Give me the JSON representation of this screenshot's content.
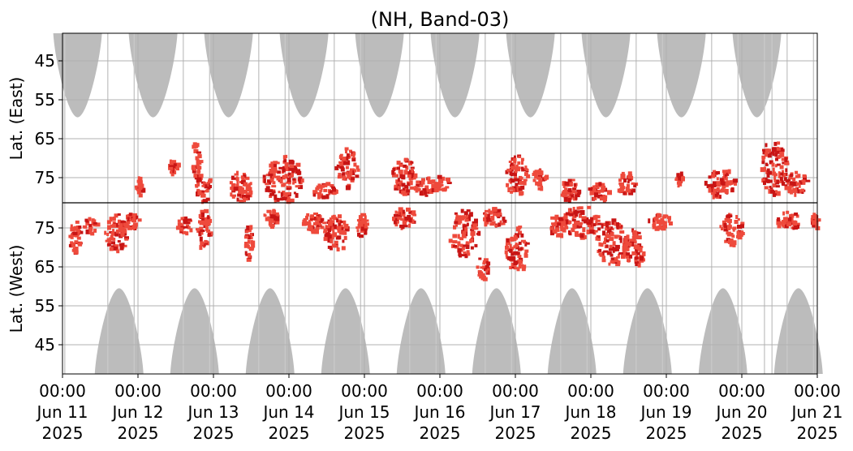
{
  "chart_data": {
    "type": "heatmap",
    "title": "(NH, Band-03)",
    "ylabel_east": "Lat. (East)",
    "ylabel_west": "Lat. (West)",
    "y_tick_labels_east": [
      "45",
      "55",
      "65",
      "75"
    ],
    "y_tick_labels_west": [
      "75",
      "65",
      "55",
      "45"
    ],
    "x_tick_labels": [
      [
        "00:00",
        "Jun 11",
        "2025"
      ],
      [
        "00:00",
        "Jun 12",
        "2025"
      ],
      [
        "00:00",
        "Jun 13",
        "2025"
      ],
      [
        "00:00",
        "Jun 14",
        "2025"
      ],
      [
        "00:00",
        "Jun 15",
        "2025"
      ],
      [
        "00:00",
        "Jun 16",
        "2025"
      ],
      [
        "00:00",
        "Jun 17",
        "2025"
      ],
      [
        "00:00",
        "Jun 18",
        "2025"
      ],
      [
        "00:00",
        "Jun 19",
        "2025"
      ],
      [
        "00:00",
        "Jun 20",
        "2025"
      ],
      [
        "00:00",
        "Jun 21",
        "2025"
      ]
    ],
    "grid": true,
    "colors": {
      "daylight_gray": "#bcbcbc",
      "activity_light": "#ee4a3c",
      "activity_dark": "#c81515",
      "grid": "#b0b0b0",
      "divider": "#000000"
    },
    "daylight_lobes": {
      "top_centers_day": [
        0.2,
        1.2,
        2.2,
        3.2,
        4.2,
        5.2,
        6.2,
        7.2,
        8.2,
        9.2
      ],
      "bottom_centers_day": [
        0.75,
        1.75,
        2.75,
        3.75,
        4.75,
        5.75,
        6.75,
        7.75,
        8.75,
        9.75
      ],
      "top_lobe_extent_lat": 59.5,
      "bottom_lobe_extent_lat": 59.5
    },
    "activity_regions": [
      {
        "day": 0.15,
        "lat": 73,
        "hemisphere": "west",
        "w": 0.18,
        "h": 8,
        "intensity": 0.6
      },
      {
        "day": 0.35,
        "lat": 76,
        "hemisphere": "west",
        "w": 0.2,
        "h": 4,
        "intensity": 0.5
      },
      {
        "day": 0.7,
        "lat": 74,
        "hemisphere": "west",
        "w": 0.3,
        "h": 10,
        "intensity": 0.8
      },
      {
        "day": 0.9,
        "lat": 77,
        "hemisphere": "west",
        "w": 0.2,
        "h": 4,
        "intensity": 0.5
      },
      {
        "day": 1.0,
        "lat": 77,
        "hemisphere": "east",
        "w": 0.1,
        "h": 5,
        "intensity": 0.4
      },
      {
        "day": 1.45,
        "lat": 72,
        "hemisphere": "east",
        "w": 0.12,
        "h": 4,
        "intensity": 0.4
      },
      {
        "day": 1.6,
        "lat": 76,
        "hemisphere": "west",
        "w": 0.2,
        "h": 4,
        "intensity": 0.5
      },
      {
        "day": 1.75,
        "lat": 70,
        "hemisphere": "east",
        "w": 0.12,
        "h": 10,
        "intensity": 0.9
      },
      {
        "day": 1.85,
        "lat": 77,
        "hemisphere": "east",
        "w": 0.2,
        "h": 8,
        "intensity": 0.8
      },
      {
        "day": 1.85,
        "lat": 75,
        "hemisphere": "west",
        "w": 0.18,
        "h": 10,
        "intensity": 0.7
      },
      {
        "day": 2.35,
        "lat": 77,
        "hemisphere": "east",
        "w": 0.3,
        "h": 8,
        "intensity": 0.6
      },
      {
        "day": 2.45,
        "lat": 72,
        "hemisphere": "west",
        "w": 0.1,
        "h": 10,
        "intensity": 0.6
      },
      {
        "day": 2.75,
        "lat": 78,
        "hemisphere": "west",
        "w": 0.2,
        "h": 4,
        "intensity": 0.5
      },
      {
        "day": 2.9,
        "lat": 75,
        "hemisphere": "east",
        "w": 0.5,
        "h": 12,
        "intensity": 1.0
      },
      {
        "day": 3.3,
        "lat": 77,
        "hemisphere": "west",
        "w": 0.3,
        "h": 5,
        "intensity": 0.6
      },
      {
        "day": 3.45,
        "lat": 78,
        "hemisphere": "east",
        "w": 0.3,
        "h": 4,
        "intensity": 0.5
      },
      {
        "day": 3.6,
        "lat": 74,
        "hemisphere": "west",
        "w": 0.3,
        "h": 10,
        "intensity": 0.9
      },
      {
        "day": 3.75,
        "lat": 72,
        "hemisphere": "east",
        "w": 0.3,
        "h": 10,
        "intensity": 0.8
      },
      {
        "day": 3.95,
        "lat": 76,
        "hemisphere": "west",
        "w": 0.15,
        "h": 6,
        "intensity": 0.5
      },
      {
        "day": 4.5,
        "lat": 74,
        "hemisphere": "east",
        "w": 0.3,
        "h": 10,
        "intensity": 0.7
      },
      {
        "day": 4.5,
        "lat": 78,
        "hemisphere": "west",
        "w": 0.3,
        "h": 5,
        "intensity": 0.7
      },
      {
        "day": 4.8,
        "lat": 77,
        "hemisphere": "east",
        "w": 0.3,
        "h": 5,
        "intensity": 0.6
      },
      {
        "day": 5.0,
        "lat": 76,
        "hemisphere": "east",
        "w": 0.2,
        "h": 4,
        "intensity": 0.5
      },
      {
        "day": 5.3,
        "lat": 74,
        "hemisphere": "west",
        "w": 0.4,
        "h": 12,
        "intensity": 1.0
      },
      {
        "day": 5.55,
        "lat": 65,
        "hemisphere": "west",
        "w": 0.15,
        "h": 6,
        "intensity": 0.5
      },
      {
        "day": 5.7,
        "lat": 78,
        "hemisphere": "west",
        "w": 0.3,
        "h": 5,
        "intensity": 0.6
      },
      {
        "day": 6.0,
        "lat": 74,
        "hemisphere": "east",
        "w": 0.3,
        "h": 10,
        "intensity": 0.6
      },
      {
        "day": 6.0,
        "lat": 70,
        "hemisphere": "west",
        "w": 0.3,
        "h": 12,
        "intensity": 0.8
      },
      {
        "day": 6.3,
        "lat": 75,
        "hemisphere": "east",
        "w": 0.2,
        "h": 5,
        "intensity": 0.5
      },
      {
        "day": 6.55,
        "lat": 76,
        "hemisphere": "west",
        "w": 0.25,
        "h": 6,
        "intensity": 0.6
      },
      {
        "day": 6.7,
        "lat": 78,
        "hemisphere": "east",
        "w": 0.25,
        "h": 6,
        "intensity": 0.9
      },
      {
        "day": 6.85,
        "lat": 77,
        "hemisphere": "west",
        "w": 0.5,
        "h": 8,
        "intensity": 1.0
      },
      {
        "day": 7.25,
        "lat": 72,
        "hemisphere": "west",
        "w": 0.4,
        "h": 12,
        "intensity": 1.0
      },
      {
        "day": 7.1,
        "lat": 78,
        "hemisphere": "east",
        "w": 0.3,
        "h": 5,
        "intensity": 0.6
      },
      {
        "day": 7.45,
        "lat": 76,
        "hemisphere": "east",
        "w": 0.25,
        "h": 6,
        "intensity": 0.6
      },
      {
        "day": 7.55,
        "lat": 70,
        "hemisphere": "west",
        "w": 0.3,
        "h": 10,
        "intensity": 0.8
      },
      {
        "day": 7.9,
        "lat": 77,
        "hemisphere": "west",
        "w": 0.3,
        "h": 4,
        "intensity": 0.5
      },
      {
        "day": 8.15,
        "lat": 75,
        "hemisphere": "east",
        "w": 0.1,
        "h": 4,
        "intensity": 0.5
      },
      {
        "day": 8.7,
        "lat": 76,
        "hemisphere": "east",
        "w": 0.4,
        "h": 8,
        "intensity": 0.7
      },
      {
        "day": 8.85,
        "lat": 75,
        "hemisphere": "west",
        "w": 0.3,
        "h": 8,
        "intensity": 0.6
      },
      {
        "day": 9.4,
        "lat": 72,
        "hemisphere": "east",
        "w": 0.35,
        "h": 14,
        "intensity": 1.0
      },
      {
        "day": 9.7,
        "lat": 76,
        "hemisphere": "east",
        "w": 0.3,
        "h": 6,
        "intensity": 0.9
      },
      {
        "day": 9.6,
        "lat": 77,
        "hemisphere": "west",
        "w": 0.3,
        "h": 5,
        "intensity": 0.6
      },
      {
        "day": 9.95,
        "lat": 77,
        "hemisphere": "west",
        "w": 0.1,
        "h": 4,
        "intensity": 0.5
      }
    ]
  }
}
